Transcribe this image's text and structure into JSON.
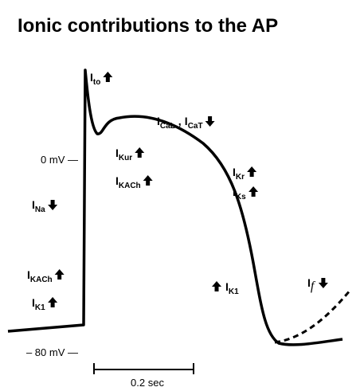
{
  "title": "Ionic contributions to the AP",
  "axis": {
    "zero": "0 mV —",
    "rest": "– 80 mV —"
  },
  "scale": "0.2 sec",
  "currents": [
    {
      "main": "I",
      "sub": "to"
    },
    {
      "main": "I",
      "sub": "CaL"
    },
    {
      "main": "I",
      "sub": "CaT"
    },
    {
      "main": "I",
      "sub": "Kur"
    },
    {
      "main": "I",
      "sub": "KACh"
    },
    {
      "main": "I",
      "sub": "Kr"
    },
    {
      "main": "I",
      "sub": "Ks"
    },
    {
      "main": "I",
      "sub": "Na"
    },
    {
      "main": "I",
      "sub": "KACh"
    },
    {
      "main": "I",
      "sub": "K1"
    },
    {
      "main": "I",
      "sub": "K1"
    },
    {
      "main": "I",
      "sub": "f"
    }
  ],
  "separator": ","
}
